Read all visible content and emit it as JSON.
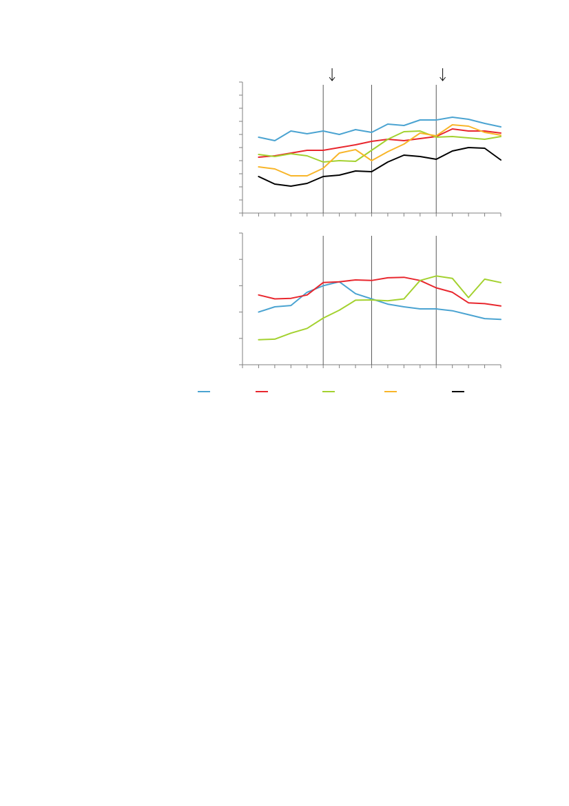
{
  "chart_data": [
    {
      "type": "line",
      "title": "",
      "xlabel": "",
      "ylabel": "",
      "x": [
        1,
        2,
        3,
        4,
        5,
        6,
        7,
        8,
        9,
        10,
        11,
        12,
        13,
        14,
        15,
        16
      ],
      "xlim": [
        0,
        16
      ],
      "ylim": [
        0,
        9.5
      ],
      "y_tick_count": 10,
      "grid": false,
      "vertical_markers": [
        5,
        8,
        12
      ],
      "arrow_markers": [
        5.55,
        12.4
      ],
      "series": [
        {
          "color": "#4aa3d1",
          "values": [
            5.5,
            5.25,
            5.95,
            5.75,
            5.95,
            5.7,
            6.05,
            5.85,
            6.45,
            6.35,
            6.75,
            6.75,
            6.95,
            6.8,
            6.5,
            6.25
          ]
        },
        {
          "color": "#e8262d",
          "values": [
            4.05,
            4.15,
            4.35,
            4.55,
            4.55,
            4.75,
            4.95,
            5.2,
            5.35,
            5.25,
            5.4,
            5.55,
            6.1,
            5.95,
            5.95,
            5.8
          ]
        },
        {
          "color": "#a3d12f",
          "values": [
            4.25,
            4.1,
            4.3,
            4.15,
            3.7,
            3.8,
            3.75,
            4.55,
            5.35,
            5.9,
            5.95,
            5.5,
            5.55,
            5.45,
            5.35,
            5.55
          ]
        },
        {
          "color": "#f8b528",
          "values": [
            3.35,
            3.2,
            2.7,
            2.7,
            3.25,
            4.35,
            4.6,
            3.8,
            4.45,
            5.0,
            5.8,
            5.6,
            6.4,
            6.3,
            5.85,
            5.65
          ]
        },
        {
          "color": "#000000",
          "values": [
            2.65,
            2.1,
            1.95,
            2.15,
            2.65,
            2.75,
            3.05,
            3.0,
            3.7,
            4.2,
            4.1,
            3.9,
            4.5,
            4.75,
            4.7,
            3.85
          ]
        }
      ]
    },
    {
      "type": "line",
      "title": "",
      "xlabel": "",
      "ylabel": "",
      "x": [
        1,
        2,
        3,
        4,
        5,
        6,
        7,
        8,
        9,
        10,
        11,
        12,
        13,
        14,
        15,
        16
      ],
      "xlim": [
        0,
        16
      ],
      "ylim": [
        0,
        5
      ],
      "y_tick_count": 5,
      "grid": false,
      "vertical_markers": [
        5,
        8,
        12
      ],
      "series": [
        {
          "color": "#4aa3d1",
          "values": [
            2.0,
            2.2,
            2.25,
            2.75,
            3.0,
            3.15,
            2.7,
            2.5,
            2.3,
            2.2,
            2.12,
            2.12,
            2.05,
            1.9,
            1.75,
            1.72
          ]
        },
        {
          "color": "#e8262d",
          "values": [
            2.65,
            2.5,
            2.52,
            2.65,
            3.12,
            3.15,
            3.22,
            3.2,
            3.3,
            3.32,
            3.2,
            2.92,
            2.75,
            2.35,
            2.32,
            2.23
          ]
        },
        {
          "color": "#a3d12f",
          "values": [
            0.95,
            0.97,
            1.2,
            1.38,
            1.77,
            2.07,
            2.45,
            2.46,
            2.43,
            2.5,
            3.2,
            3.37,
            3.28,
            2.55,
            3.25,
            3.12
          ]
        }
      ]
    }
  ]
}
